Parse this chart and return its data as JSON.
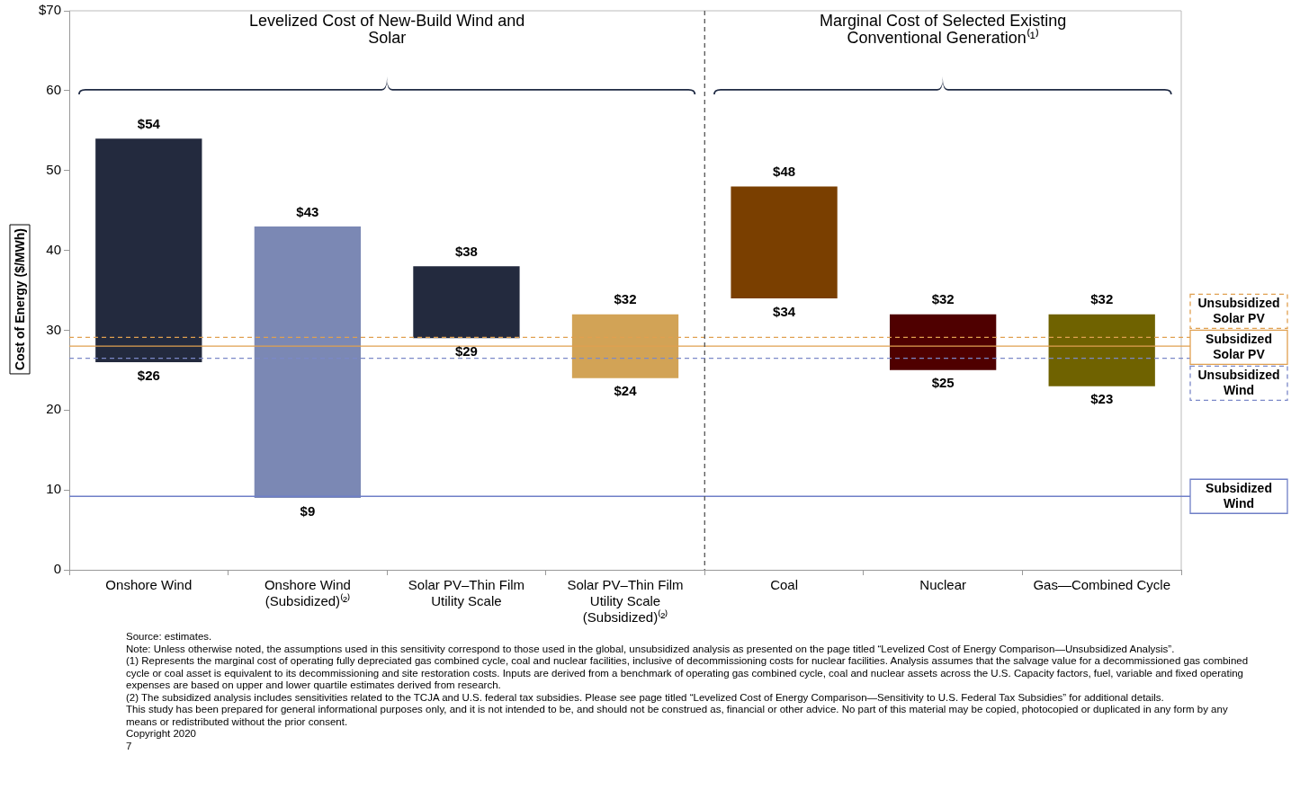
{
  "chart_data": {
    "type": "bar",
    "ylabel": "Cost of Energy ($/MWh)",
    "categories": [
      "Onshore Wind",
      "Onshore Wind (Subsidized)⁽²⁾",
      "Solar PV–Thin Film Utility Scale",
      "Solar PV–Thin Film Utility Scale (Subsidized)⁽²⁾",
      "Coal",
      "Nuclear",
      "Gas—Combined Cycle"
    ],
    "base": [
      26,
      9,
      29,
      24,
      34,
      25,
      23
    ],
    "values": [
      28,
      34,
      9,
      8,
      14,
      7,
      9
    ],
    "colors": [
      "#232a3e",
      "#7b88b4",
      "#232a3e",
      "#d2a356",
      "#7a3f00",
      "#4f0000",
      "#6f6200"
    ],
    "ylim": [
      0,
      70
    ],
    "yticks": [
      0,
      10,
      20,
      30,
      40,
      50,
      60,
      {
        "value": 70,
        "label": "$70"
      }
    ],
    "grid": false,
    "legend": false,
    "ref_lines": [
      {
        "axis": "y",
        "value": 29.1,
        "label": "Unsubsidized Solar PV",
        "color": "#e0a050",
        "line_style": "dashed"
      },
      {
        "axis": "y",
        "value": 28,
        "label": "Subsidized Solar PV",
        "color": "#e0a050",
        "line_style": "solid"
      },
      {
        "axis": "y",
        "value": 26.5,
        "label": "Unsubsidized Wind",
        "color": "#7b88c8",
        "line_style": "dashed"
      },
      {
        "axis": "y",
        "value": 9.2,
        "label": "Subsidized Wind",
        "color": "#6f7fc7",
        "line_style": "solid"
      }
    ],
    "annotations": [
      "Levelized Cost of New-Build Wind and Solar",
      "Marginal Cost of Selected Existing Conventional Generation⁽¹⁾",
      {
        "text": "$54",
        "x": "Onshore Wind",
        "y": 54
      },
      {
        "text": "$26",
        "x": "Onshore Wind",
        "y": 26
      },
      {
        "text": "$43",
        "x": "Onshore Wind (Subsidized)⁽²⁾",
        "y": 43
      },
      {
        "text": "$9",
        "x": "Onshore Wind (Subsidized)⁽²⁾",
        "y": 9
      },
      {
        "text": "$38",
        "x": "Solar PV–Thin Film Utility Scale",
        "y": 38
      },
      {
        "text": "$29",
        "x": "Solar PV–Thin Film Utility Scale",
        "y": 29
      },
      {
        "text": "$32",
        "x": "Solar PV–Thin Film Utility Scale (Subsidized)⁽²⁾",
        "y": 32
      },
      {
        "text": "$24",
        "x": "Solar PV–Thin Film Utility Scale (Subsidized)⁽²⁾",
        "y": 24
      },
      {
        "text": "$48",
        "x": "Coal",
        "y": 48
      },
      {
        "text": "$34",
        "x": "Coal",
        "y": 34
      },
      {
        "text": "$32",
        "x": "Nuclear",
        "y": 32
      },
      {
        "text": "$25",
        "x": "Nuclear",
        "y": 25
      },
      {
        "text": "$32",
        "x": "Gas—Combined Cycle",
        "y": 32
      },
      {
        "text": "$23",
        "x": "Gas—Combined Cycle",
        "y": 23
      },
      "Source: estimates.",
      "Note: Unless otherwise noted, the assumptions used in this sensitivity correspond to those used in the global, unsubsidized analysis as presented on the page titled “Levelized Cost of Energy Comparison—Unsubsidized Analysis”.",
      "(1) Represents the marginal cost of operating fully depreciated gas combined cycle, coal and nuclear facilities, inclusive of decommissioning costs for nuclear facilities. Analysis assumes that the salvage value for a decommissioned gas combined cycle or coal asset is equivalent to its decommissioning and site restoration costs. Inputs are derived from a benchmark of operating gas combined cycle, coal and nuclear assets across the U.S. Capacity factors, fuel, variable and fixed operating expenses are based on upper and lower quartile estimates derived from research.",
      "(2) The subsidized analysis includes sensitivities related to the TCJA and U.S. federal tax subsidies. Please see page titled “Levelized Cost of Energy Comparison—Sensitivity to U.S. Federal Tax Subsidies” for additional details.",
      "This study has been prepared for general informational purposes only, and it is not intended to be, and should not be construed as, financial or other advice. No part of this material may be copied, photocopied or duplicated in any form by any means or redistributed without the prior consent.",
      "Copyright 2020",
      "7"
    ]
  }
}
